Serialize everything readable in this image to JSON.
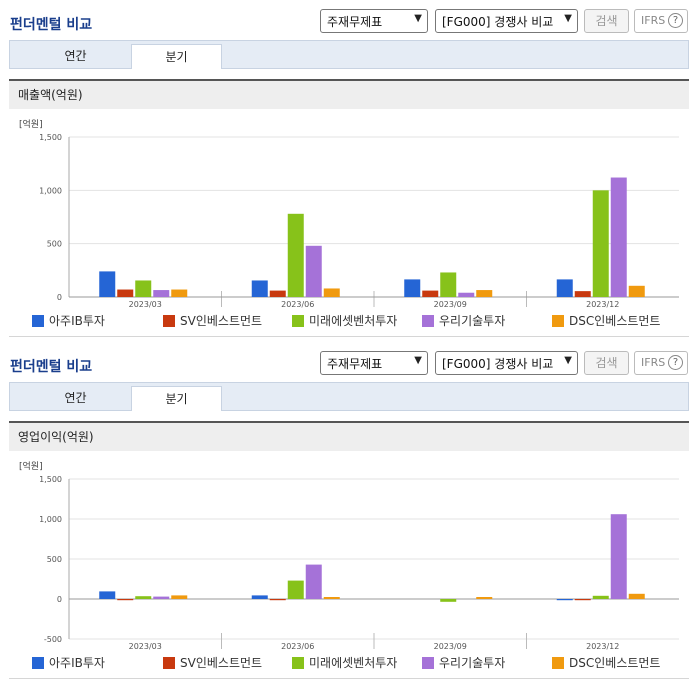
{
  "colors": [
    "#2565d5",
    "#c8390f",
    "#87c21a",
    "#a572d8",
    "#f09a0f"
  ],
  "panels": [
    {
      "title": "펀더멘털 비교",
      "select1": "주재무제표",
      "select2": "[FG000] 경쟁사 비교",
      "search_label": "검색",
      "ifrs_label": "IFRS",
      "tabs": [
        "연간",
        "분기"
      ],
      "metric_label": "매출액(억원)",
      "legend": [
        "아주IB투자",
        "SV인베스트먼트",
        "미래에셋벤처투자",
        "우리기술투자",
        "DSC인베스트먼트"
      ]
    },
    {
      "title": "펀더멘털 비교",
      "select1": "주재무제표",
      "select2": "[FG000] 경쟁사 비교",
      "search_label": "검색",
      "ifrs_label": "IFRS",
      "tabs": [
        "연간",
        "분기"
      ],
      "metric_label": "영업이익(억원)",
      "legend": [
        "아주IB투자",
        "SV인베스트먼트",
        "미래에셋벤처투자",
        "우리기술투자",
        "DSC인베스트먼트"
      ]
    }
  ],
  "chart_data": [
    {
      "type": "bar",
      "unit_label": "[억원]",
      "categories": [
        "2023/03",
        "2023/06",
        "2023/09",
        "2023/12"
      ],
      "ylim": [
        0,
        1500
      ],
      "yticks": [
        "0",
        "500",
        "1,000",
        "1,500"
      ],
      "ytick_values": [
        0,
        500,
        1000,
        1500
      ],
      "series": [
        {
          "name": "아주IB투자",
          "values": [
            240,
            155,
            165,
            165
          ]
        },
        {
          "name": "SV인베스트먼트",
          "values": [
            70,
            60,
            60,
            55
          ]
        },
        {
          "name": "미래에셋벤처투자",
          "values": [
            155,
            780,
            230,
            1000
          ]
        },
        {
          "name": "우리기술투자",
          "values": [
            65,
            480,
            40,
            1120
          ]
        },
        {
          "name": "DSC인베스트먼트",
          "values": [
            70,
            80,
            65,
            105
          ]
        }
      ],
      "grid": true,
      "legend_position": "bottom"
    },
    {
      "type": "bar",
      "unit_label": "[억원]",
      "categories": [
        "2023/03",
        "2023/06",
        "2023/09",
        "2023/12"
      ],
      "ylim": [
        -500,
        1500
      ],
      "yticks": [
        "-500",
        "0",
        "500",
        "1,000",
        "1,500"
      ],
      "ytick_values": [
        -500,
        0,
        500,
        1000,
        1500
      ],
      "series": [
        {
          "name": "아주IB투자",
          "values": [
            95,
            45,
            0,
            -15
          ]
        },
        {
          "name": "SV인베스트먼트",
          "values": [
            -15,
            -15,
            0,
            -15
          ]
        },
        {
          "name": "미래에셋벤처투자",
          "values": [
            35,
            230,
            -35,
            40
          ]
        },
        {
          "name": "우리기술투자",
          "values": [
            30,
            430,
            0,
            1060
          ]
        },
        {
          "name": "DSC인베스트먼트",
          "values": [
            45,
            25,
            25,
            65
          ]
        }
      ],
      "grid": true,
      "legend_position": "bottom"
    }
  ]
}
